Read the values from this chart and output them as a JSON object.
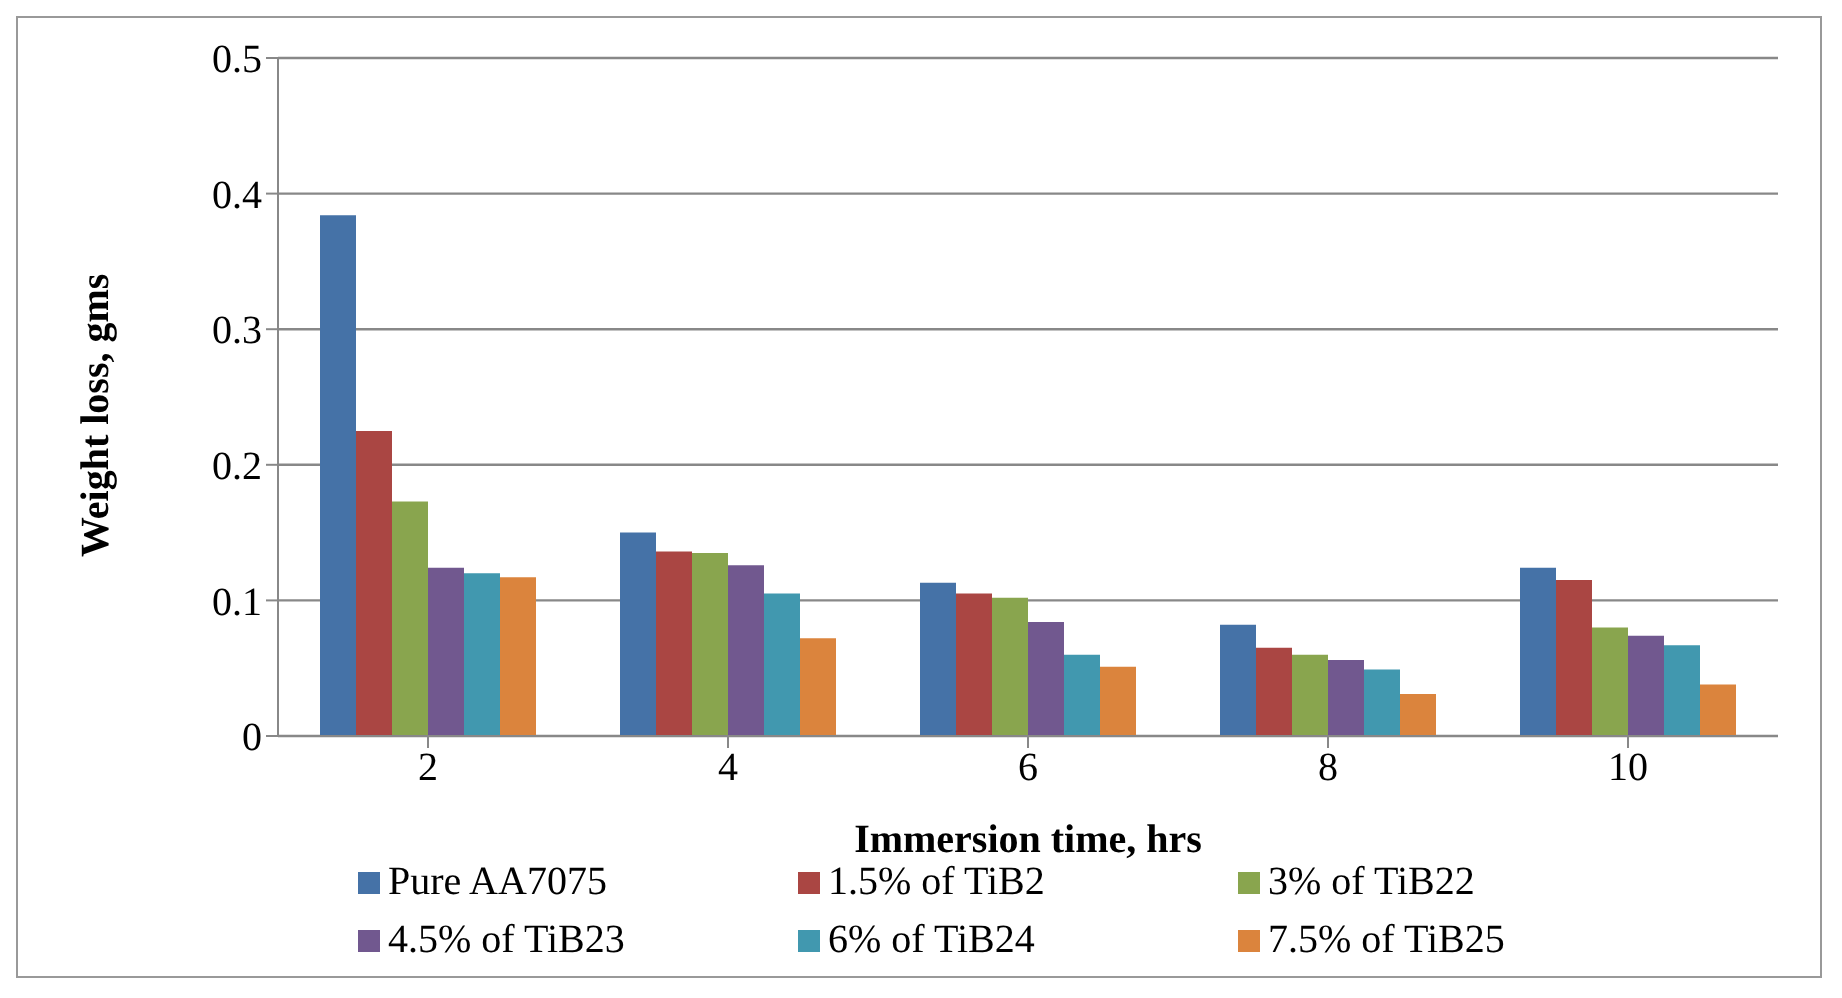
{
  "chart_data": {
    "type": "bar",
    "xlabel": "Immersion time, hrs",
    "ylabel": "Weight loss, gms",
    "categories": [
      "2",
      "4",
      "6",
      "8",
      "10"
    ],
    "series": [
      {
        "name": "Pure AA7075",
        "color": "#4572a7",
        "values": [
          0.384,
          0.15,
          0.113,
          0.082,
          0.124
        ]
      },
      {
        "name": "1.5% of TiB2",
        "color": "#aa4643",
        "values": [
          0.225,
          0.136,
          0.105,
          0.065,
          0.115
        ]
      },
      {
        "name": "3% of TiB22",
        "color": "#89a54e",
        "values": [
          0.173,
          0.135,
          0.102,
          0.06,
          0.08
        ]
      },
      {
        "name": "4.5% of TiB23",
        "color": "#71588f",
        "values": [
          0.124,
          0.126,
          0.084,
          0.056,
          0.074
        ]
      },
      {
        "name": "6% of TiB24",
        "color": "#4198af",
        "values": [
          0.12,
          0.105,
          0.06,
          0.049,
          0.067
        ]
      },
      {
        "name": "7.5% of TiB25",
        "color": "#db843d",
        "values": [
          0.117,
          0.072,
          0.051,
          0.031,
          0.038
        ]
      }
    ],
    "ylim": [
      0,
      0.5
    ],
    "yticks": [
      0,
      0.1,
      0.2,
      0.3,
      0.4,
      0.5
    ],
    "grid": "y",
    "legend": "bottom"
  }
}
